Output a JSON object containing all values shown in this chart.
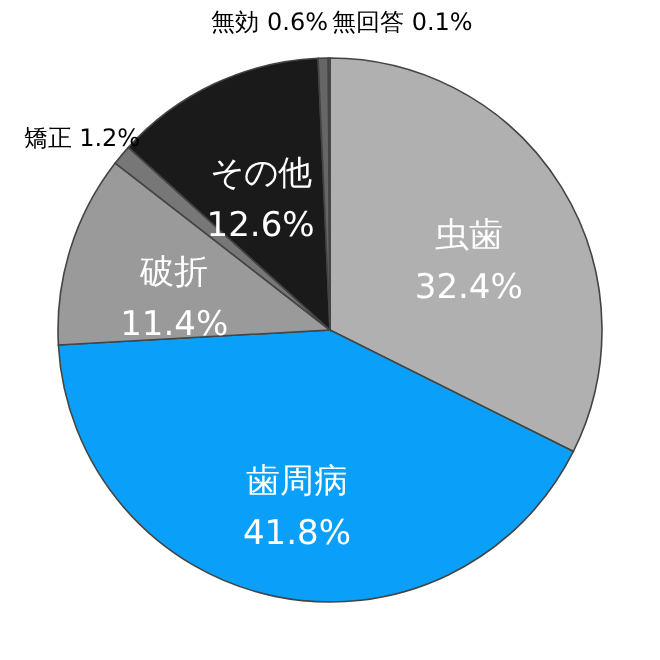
{
  "chart_data": {
    "type": "pie",
    "categories": [
      "虫歯",
      "歯周病",
      "破折",
      "矯正",
      "その他",
      "無効",
      "無回答"
    ],
    "values": [
      32.4,
      41.8,
      11.4,
      1.2,
      12.6,
      0.6,
      0.1
    ],
    "value_labels": [
      "32.4%",
      "41.8%",
      "11.4%",
      "1.2%",
      "12.6%",
      "0.6%",
      "0.1%"
    ],
    "colors": [
      "#b0b0b0",
      "#0aa0fa",
      "#9a9a9a",
      "#777777",
      "#1a1a1a",
      "#666666",
      "#8a8a8a"
    ]
  }
}
